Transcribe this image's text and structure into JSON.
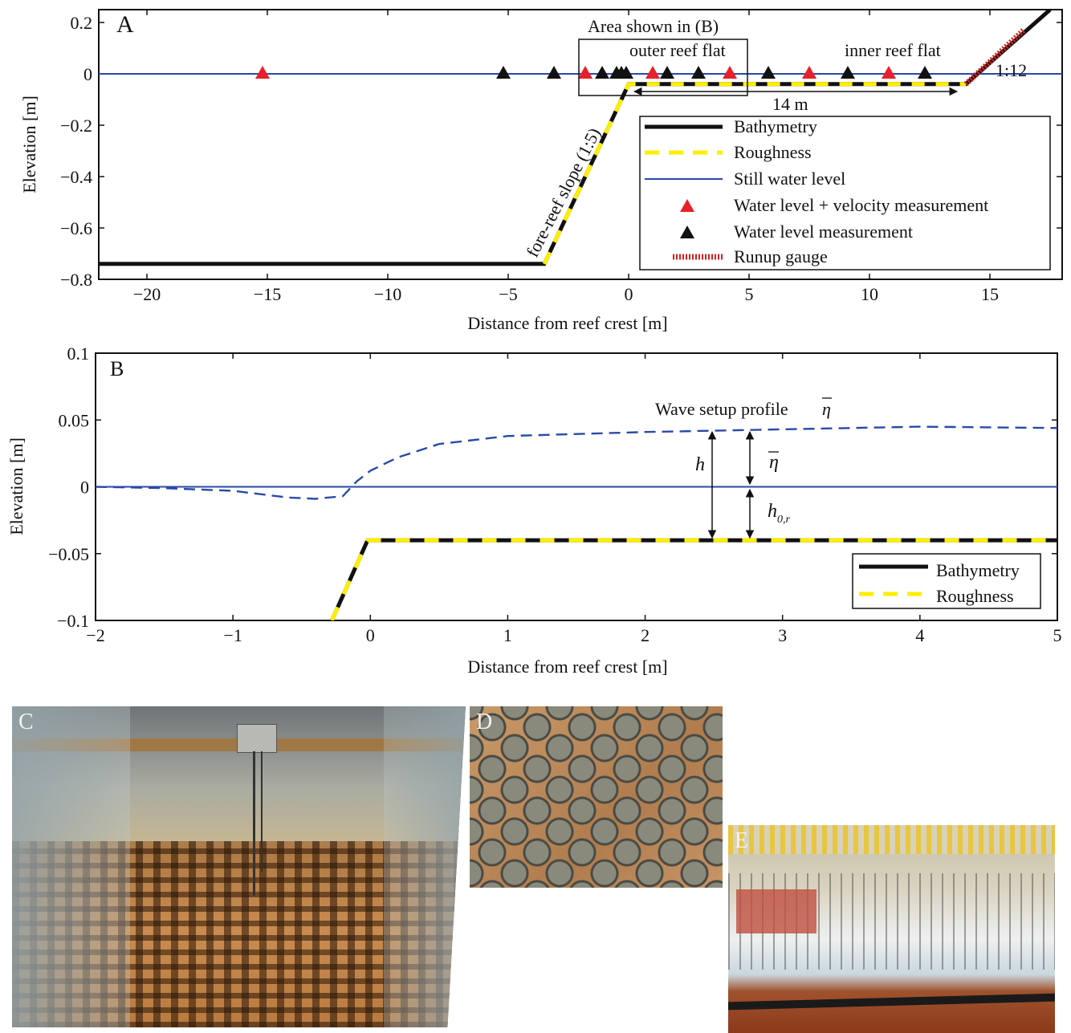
{
  "colors": {
    "bathymetry": "#111111",
    "roughness": "#ffee00",
    "still_water": "#2a49a8",
    "velocity_marker": "#e8202a",
    "water_marker": "#111111",
    "runup": "#d42020",
    "setup": "#2a49a8"
  },
  "chart_data": [
    {
      "type": "line",
      "panel_label": "A",
      "xlabel": "Distance from reef crest [m]",
      "ylabel": "Elevation [m]",
      "xlim": [
        -22,
        18
      ],
      "ylim": [
        -0.8,
        0.25
      ],
      "xticks": [
        -20,
        -15,
        -10,
        -5,
        0,
        5,
        10,
        15
      ],
      "xtick_labels": [
        "−20",
        "−15",
        "−10",
        "−5",
        "0",
        "5",
        "10",
        "15"
      ],
      "yticks": [
        0.2,
        0,
        -0.2,
        -0.4,
        -0.6,
        -0.8
      ],
      "ytick_labels": [
        "0.2",
        "0",
        "−0.2",
        "−0.4",
        "−0.6",
        "−0.8"
      ],
      "series": [
        {
          "name": "Bathymetry",
          "x": [
            -22,
            -3.5,
            -0.2,
            0,
            14,
            17.5
          ],
          "y": [
            -0.74,
            -0.74,
            -0.08,
            -0.04,
            -0.04,
            0.25
          ]
        },
        {
          "name": "Roughness",
          "x": [
            -3.5,
            -0.2,
            0,
            14
          ],
          "y": [
            -0.74,
            -0.08,
            -0.04,
            -0.04
          ]
        },
        {
          "name": "Still water level",
          "x": [
            -22,
            18
          ],
          "y": [
            0,
            0
          ]
        },
        {
          "name": "Water level + velocity measurement",
          "x": [
            -15.2,
            -1.8,
            1,
            4.2,
            7.5,
            10.8
          ],
          "y": [
            0,
            0,
            0,
            0,
            0,
            0
          ]
        },
        {
          "name": "Water level measurement",
          "x": [
            -5.2,
            -3.1,
            -1.1,
            -0.5,
            -0.3,
            -0.1,
            1.6,
            2.9,
            5.8,
            9.1,
            12.3
          ],
          "y": [
            0,
            0,
            0,
            0,
            0,
            0,
            0,
            0,
            0,
            0,
            0
          ]
        },
        {
          "name": "Runup gauge",
          "x": [
            14,
            16.4
          ],
          "y": [
            -0.04,
            0.17
          ]
        }
      ],
      "annotations": {
        "area_box": "Area shown in (B)",
        "outer": "outer reef flat",
        "inner": "inner reef flat",
        "slope_runup": "1:12",
        "span": "14 m",
        "slope_fore": "fore-reef slope (1:5)"
      },
      "legend": [
        "Bathymetry",
        "Roughness",
        "Still water level",
        "Water level + velocity measurement",
        "Water level measurement",
        "Runup gauge"
      ],
      "legend_position": "lower-right"
    },
    {
      "type": "line",
      "panel_label": "B",
      "xlabel": "Distance from reef crest [m]",
      "ylabel": "Elevation [m]",
      "xlim": [
        -2,
        5
      ],
      "ylim": [
        -0.1,
        0.1
      ],
      "xticks": [
        -2,
        -1,
        0,
        1,
        2,
        3,
        4,
        5
      ],
      "xtick_labels": [
        "−2",
        "−1",
        "0",
        "1",
        "2",
        "3",
        "4",
        "5"
      ],
      "yticks": [
        0.1,
        0.05,
        0,
        -0.05,
        -0.1
      ],
      "ytick_labels": [
        "0.1",
        "0.05",
        "0",
        "−0.05",
        "−0.1"
      ],
      "series": [
        {
          "name": "Bathymetry",
          "x": [
            -0.28,
            -0.02,
            0,
            5
          ],
          "y": [
            -0.1,
            -0.04,
            -0.04,
            -0.04
          ]
        },
        {
          "name": "Roughness",
          "x": [
            -0.28,
            -0.02,
            0,
            5
          ],
          "y": [
            -0.1,
            -0.04,
            -0.04,
            -0.04
          ]
        },
        {
          "x": [
            -2,
            5
          ],
          "y": [
            0,
            0
          ]
        },
        {
          "x": [
            -2,
            -1.5,
            -1.0,
            -0.6,
            -0.4,
            -0.2,
            -0.1,
            0,
            0.2,
            0.5,
            1.0,
            2.0,
            3.0,
            4.0,
            5.0
          ],
          "y": [
            0,
            -0.001,
            -0.003,
            -0.008,
            -0.009,
            -0.007,
            0.004,
            0.012,
            0.022,
            0.032,
            0.038,
            0.041,
            0.043,
            0.045,
            0.044
          ]
        }
      ],
      "annotations": {
        "setup_label": "Wave setup profile",
        "eta": "η",
        "h": "h",
        "h0r_main": "h",
        "h0r_sub": "0,r"
      },
      "legend": [
        "Bathymetry",
        "Roughness"
      ],
      "legend_position": "lower-right"
    }
  ],
  "photos": {
    "C": "C",
    "D": "D",
    "E": "E"
  }
}
